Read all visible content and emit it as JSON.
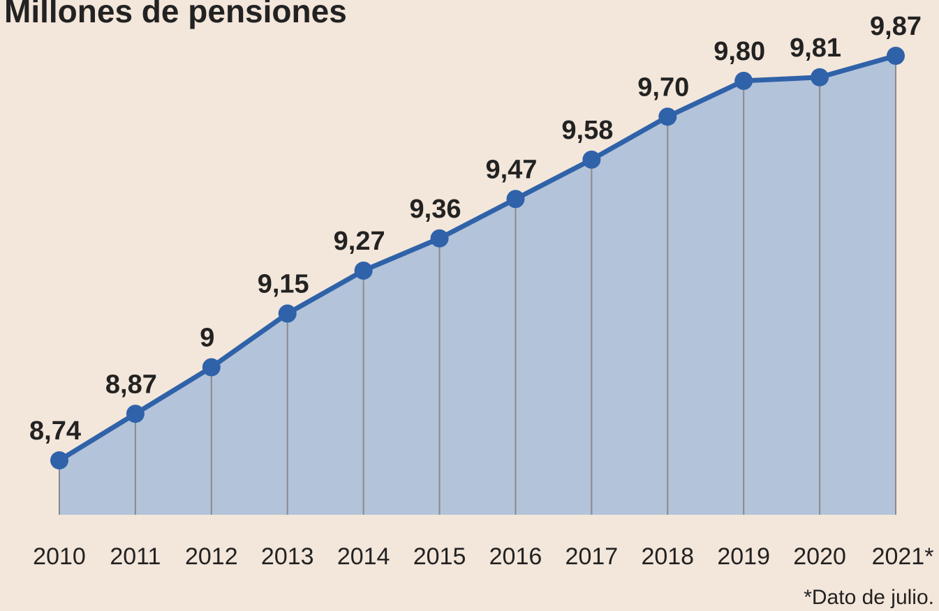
{
  "chart_data": {
    "type": "area",
    "title": "Millones de pensiones",
    "categories": [
      "2010",
      "2011",
      "2012",
      "2013",
      "2014",
      "2015",
      "2016",
      "2017",
      "2018",
      "2019",
      "2020",
      "2021*"
    ],
    "values": [
      8.74,
      8.87,
      9,
      9.15,
      9.27,
      9.36,
      9.47,
      9.58,
      9.7,
      9.8,
      9.81,
      9.87
    ],
    "value_labels": [
      "8,74",
      "8,87",
      "9",
      "9,15",
      "9,27",
      "9,36",
      "9,47",
      "9,58",
      "9,70",
      "9,80",
      "9,81",
      "9,87"
    ],
    "color": "#2f62a8",
    "fill": "#b3c3da",
    "note": "*Dato de julio."
  }
}
